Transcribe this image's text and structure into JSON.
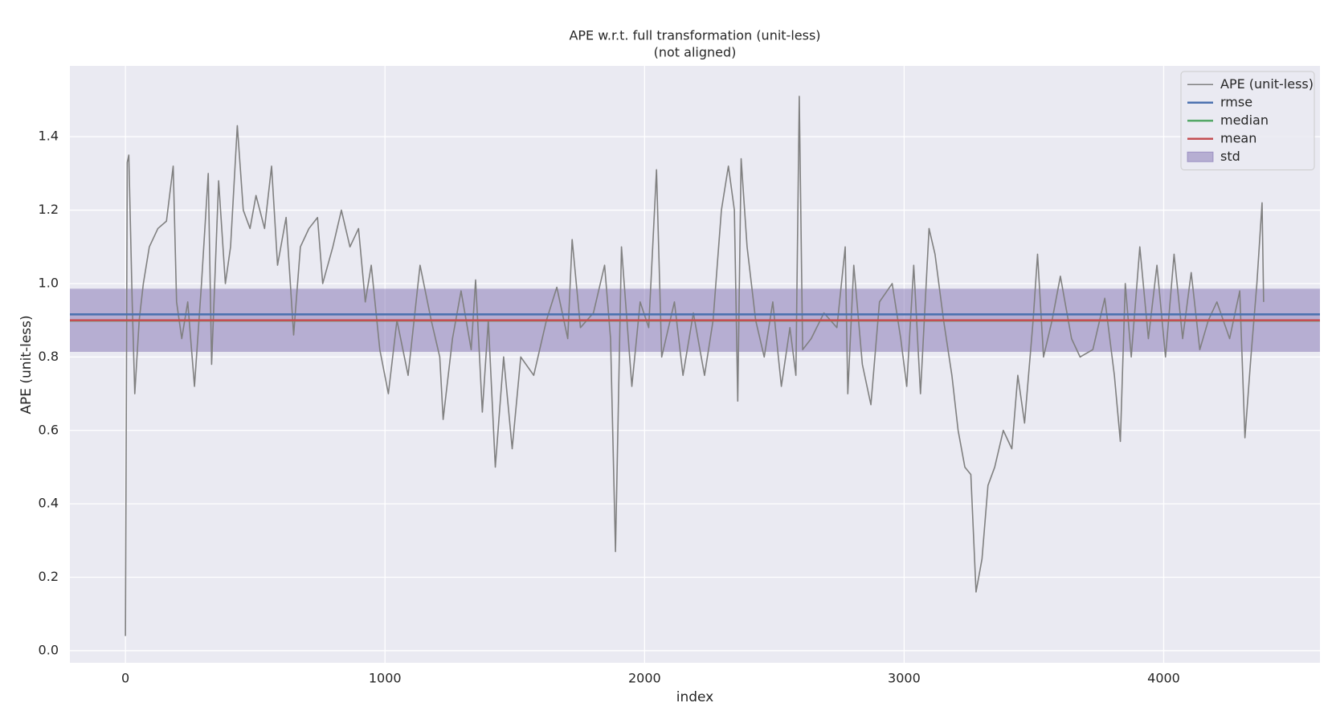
{
  "chart_data": {
    "type": "line",
    "title": "APE w.r.t. full transformation (unit-less)",
    "subtitle": "(not aligned)",
    "x_label": "index",
    "y_label": "APE (unit-less)",
    "xlim": [
      -214,
      4602
    ],
    "ylim": [
      -0.033,
      1.593
    ],
    "xticks": [
      0,
      1000,
      2000,
      3000,
      4000
    ],
    "yticks": [
      {
        "value": 0,
        "label": "0.0"
      },
      0.2,
      0.4,
      0.6,
      0.8,
      {
        "value": 1,
        "label": "1.0"
      },
      1.2,
      1.4
    ],
    "grid": true,
    "legend": "upper right",
    "series": [
      {
        "name": "APE (unit-less)",
        "color": "#808080",
        "x": [
          0,
          7,
          13,
          26,
          36,
          53,
          69,
          92,
          125,
          158,
          184,
          197,
          217,
          240,
          266,
          293,
          319,
          332,
          359,
          385,
          405,
          431,
          454,
          480,
          503,
          536,
          563,
          586,
          619,
          648,
          674,
          707,
          740,
          760,
          799,
          832,
          865,
          898,
          924,
          947,
          980,
          1013,
          1046,
          1089,
          1135,
          1178,
          1211,
          1224,
          1260,
          1293,
          1332,
          1349,
          1375,
          1398,
          1425,
          1457,
          1490,
          1523,
          1573,
          1622,
          1662,
          1704,
          1721,
          1753,
          1803,
          1846,
          1869,
          1888,
          1911,
          1951,
          1983,
          2016,
          2046,
          2066,
          2115,
          2148,
          2188,
          2231,
          2264,
          2296,
          2323,
          2346,
          2359,
          2372,
          2395,
          2428,
          2461,
          2494,
          2527,
          2560,
          2583,
          2596,
          2609,
          2642,
          2691,
          2741,
          2773,
          2783,
          2806,
          2839,
          2872,
          2905,
          2954,
          2987,
          3010,
          3037,
          3063,
          3096,
          3119,
          3152,
          3184,
          3208,
          3234,
          3257,
          3277,
          3300,
          3323,
          3349,
          3382,
          3415,
          3438,
          3464,
          3497,
          3514,
          3537,
          3570,
          3602,
          3645,
          3678,
          3727,
          3773,
          3810,
          3833,
          3852,
          3875,
          3908,
          3941,
          3974,
          4007,
          4040,
          4073,
          4106,
          4139,
          4172,
          4205,
          4254,
          4293,
          4313,
          4336,
          4359,
          4379,
          4385
        ],
        "values": [
          0.04,
          1.33,
          1.35,
          0.95,
          0.7,
          0.9,
          1.0,
          1.1,
          1.15,
          1.17,
          1.32,
          0.95,
          0.85,
          0.95,
          0.72,
          1.0,
          1.3,
          0.78,
          1.28,
          1.0,
          1.1,
          1.43,
          1.2,
          1.15,
          1.24,
          1.15,
          1.32,
          1.05,
          1.18,
          0.86,
          1.1,
          1.15,
          1.18,
          1.0,
          1.1,
          1.2,
          1.1,
          1.15,
          0.95,
          1.05,
          0.82,
          0.7,
          0.9,
          0.75,
          1.05,
          0.9,
          0.8,
          0.63,
          0.85,
          0.98,
          0.82,
          1.01,
          0.65,
          0.9,
          0.5,
          0.8,
          0.55,
          0.8,
          0.75,
          0.9,
          0.99,
          0.85,
          1.12,
          0.88,
          0.92,
          1.05,
          0.85,
          0.27,
          1.1,
          0.72,
          0.95,
          0.88,
          1.31,
          0.8,
          0.95,
          0.75,
          0.92,
          0.75,
          0.9,
          1.2,
          1.32,
          1.2,
          0.68,
          1.34,
          1.1,
          0.9,
          0.8,
          0.95,
          0.72,
          0.88,
          0.75,
          1.51,
          0.82,
          0.85,
          0.92,
          0.88,
          1.1,
          0.7,
          1.05,
          0.78,
          0.67,
          0.95,
          1.0,
          0.85,
          0.72,
          1.05,
          0.7,
          1.15,
          1.08,
          0.9,
          0.75,
          0.6,
          0.5,
          0.48,
          0.16,
          0.25,
          0.45,
          0.5,
          0.6,
          0.55,
          0.75,
          0.62,
          0.9,
          1.08,
          0.8,
          0.9,
          1.02,
          0.85,
          0.8,
          0.82,
          0.96,
          0.75,
          0.57,
          1.0,
          0.8,
          1.1,
          0.85,
          1.05,
          0.8,
          1.08,
          0.85,
          1.03,
          0.82,
          0.9,
          0.95,
          0.85,
          0.98,
          0.58,
          0.8,
          1.0,
          1.22,
          0.95
        ]
      }
    ],
    "reference_lines": [
      {
        "name": "rmse",
        "color": "#4c72b0",
        "value": 0.916
      },
      {
        "name": "median",
        "color": "#55a868",
        "value": 0.899
      },
      {
        "name": "mean",
        "color": "#c44e52",
        "value": 0.9
      }
    ],
    "std": {
      "name": "std",
      "color": "#8172b2",
      "value": 0.086
    }
  }
}
